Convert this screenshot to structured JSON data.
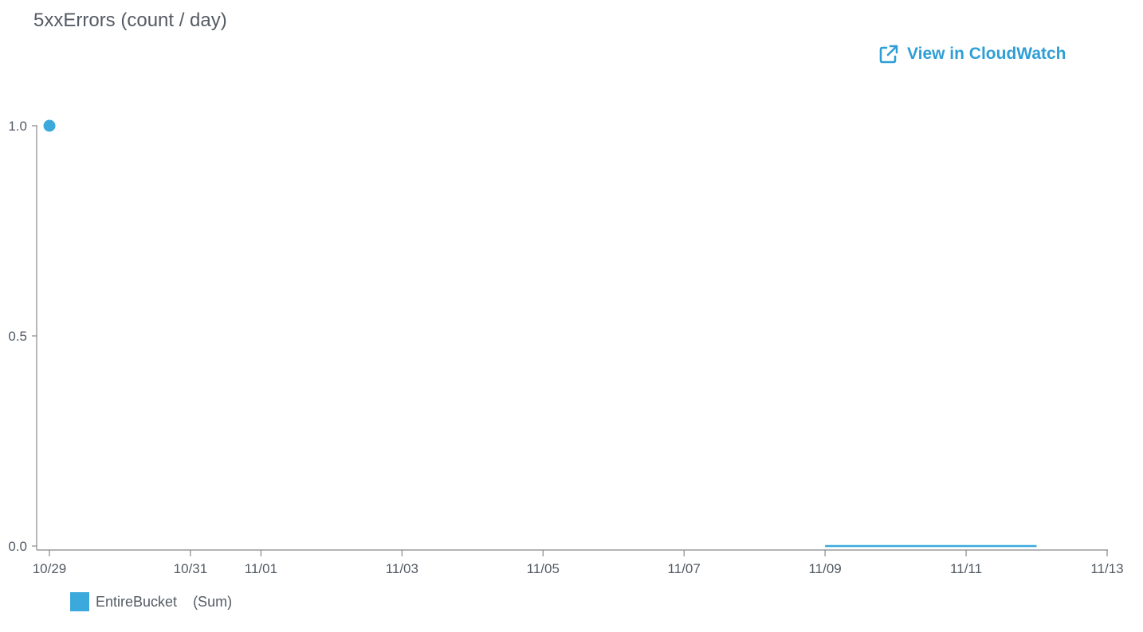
{
  "header": {
    "title": "5xxErrors (count / day)",
    "link_label": "View in CloudWatch",
    "link_icon": "external-link-icon"
  },
  "legend": {
    "series_name": "EntireBucket",
    "stat": "(Sum)"
  },
  "colors": {
    "series": "#3ba9dc",
    "axis": "#888888",
    "text": "#545b64",
    "link": "#2e9fd6"
  },
  "chart_data": {
    "type": "line",
    "title": "5xxErrors (count / day)",
    "xlabel": "",
    "ylabel": "",
    "x_axis": {
      "type": "date",
      "range": [
        "10/29",
        "11/13"
      ],
      "ticks": [
        "10/29",
        "10/31",
        "11/01",
        "11/03",
        "11/05",
        "11/07",
        "11/09",
        "11/11",
        "11/13"
      ]
    },
    "y_axis": {
      "range": [
        0,
        1
      ],
      "ticks": [
        "0.0",
        "0.5",
        "1.0"
      ]
    },
    "grid": false,
    "legend_position": "bottom-left",
    "series": [
      {
        "name": "EntireBucket",
        "stat": "(Sum)",
        "segments": [
          {
            "points": [
              {
                "x": "10/29",
                "y": 1.0
              }
            ]
          },
          {
            "points": [
              {
                "x": "11/09",
                "y": 0.0
              },
              {
                "x": "11/12",
                "y": 0.0
              }
            ]
          }
        ]
      }
    ]
  }
}
